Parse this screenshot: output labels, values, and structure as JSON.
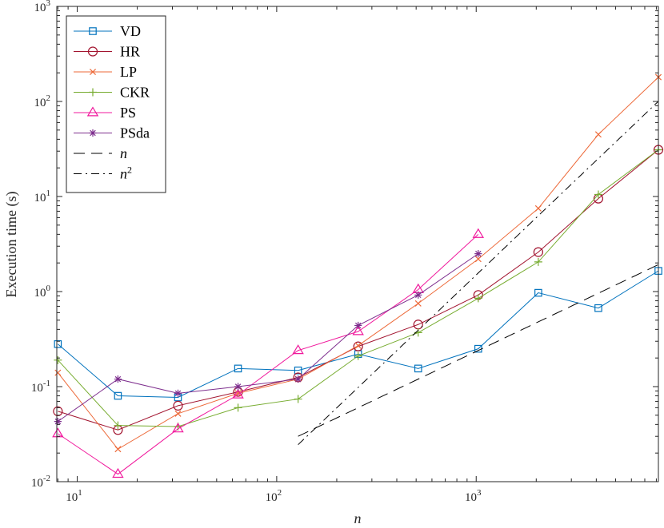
{
  "chart_data": {
    "type": "line",
    "title": "",
    "xlabel": "n",
    "ylabel": "Execution time (s)",
    "xscale": "log",
    "yscale": "log",
    "xlim": [
      7.9,
      8192
    ],
    "ylim": [
      0.01,
      1000
    ],
    "grid": false,
    "legend_position": "top-left",
    "x_ticks": [
      {
        "value": 10,
        "base": "10",
        "exp": "1"
      },
      {
        "value": 100,
        "base": "10",
        "exp": "2"
      },
      {
        "value": 1000,
        "base": "10",
        "exp": "3"
      }
    ],
    "y_ticks": [
      {
        "value": 0.01,
        "base": "10",
        "exp": "-2"
      },
      {
        "value": 0.1,
        "base": "10",
        "exp": "-1"
      },
      {
        "value": 1,
        "base": "10",
        "exp": "0"
      },
      {
        "value": 10,
        "base": "10",
        "exp": "1"
      },
      {
        "value": 100,
        "base": "10",
        "exp": "2"
      },
      {
        "value": 1000,
        "base": "10",
        "exp": "3"
      }
    ],
    "series": [
      {
        "name": "VD",
        "color": "#0072BD",
        "marker": "square",
        "x": [
          8,
          16,
          32,
          64,
          128,
          256,
          512,
          1024,
          2048,
          4096,
          8192
        ],
        "y": [
          0.28,
          0.08,
          0.077,
          0.155,
          0.148,
          0.22,
          0.155,
          0.25,
          0.97,
          0.67,
          1.65
        ]
      },
      {
        "name": "HR",
        "color": "#A2142F",
        "marker": "circle",
        "x": [
          8,
          16,
          32,
          64,
          128,
          256,
          512,
          1024,
          2048,
          4096,
          8192
        ],
        "y": [
          0.055,
          0.035,
          0.063,
          0.088,
          0.125,
          0.265,
          0.45,
          0.92,
          2.6,
          9.5,
          31
        ]
      },
      {
        "name": "LP",
        "color": "#ED6A3A",
        "marker": "x",
        "x": [
          8,
          16,
          32,
          64,
          128,
          256,
          512,
          1024,
          2048,
          4096,
          8192
        ],
        "y": [
          0.14,
          0.022,
          0.052,
          0.085,
          0.12,
          0.27,
          0.75,
          2.2,
          7.5,
          45,
          180
        ]
      },
      {
        "name": "CKR",
        "color": "#77AC30",
        "marker": "plus",
        "x": [
          8,
          16,
          32,
          64,
          128,
          256,
          512,
          1024,
          2048,
          4096,
          8192
        ],
        "y": [
          0.19,
          0.039,
          0.038,
          0.06,
          0.074,
          0.21,
          0.37,
          0.85,
          2.05,
          10.5,
          31
        ]
      },
      {
        "name": "PS",
        "color": "#F0199C",
        "marker": "triangle",
        "x": [
          8,
          16,
          32,
          64,
          128,
          256,
          512,
          1024
        ],
        "y": [
          0.032,
          0.012,
          0.036,
          0.082,
          0.24,
          0.38,
          1.05,
          4.0
        ]
      },
      {
        "name": "PSda",
        "color": "#7E2F8E",
        "marker": "asterisk",
        "x": [
          8,
          16,
          32,
          64,
          128,
          256,
          512,
          1024
        ],
        "y": [
          0.043,
          0.12,
          0.085,
          0.1,
          0.12,
          0.44,
          0.92,
          2.5
        ]
      },
      {
        "name": "n",
        "color": "#000000",
        "marker": "none",
        "dash": "dashed",
        "x": [
          128,
          8192
        ],
        "y": [
          0.03,
          1.92
        ]
      },
      {
        "name": "n²",
        "label_base": "n",
        "label_exp": "2",
        "color": "#000000",
        "marker": "none",
        "dash": "dashdot",
        "x": [
          128,
          8192
        ],
        "y": [
          0.0245,
          100.4
        ]
      }
    ]
  }
}
